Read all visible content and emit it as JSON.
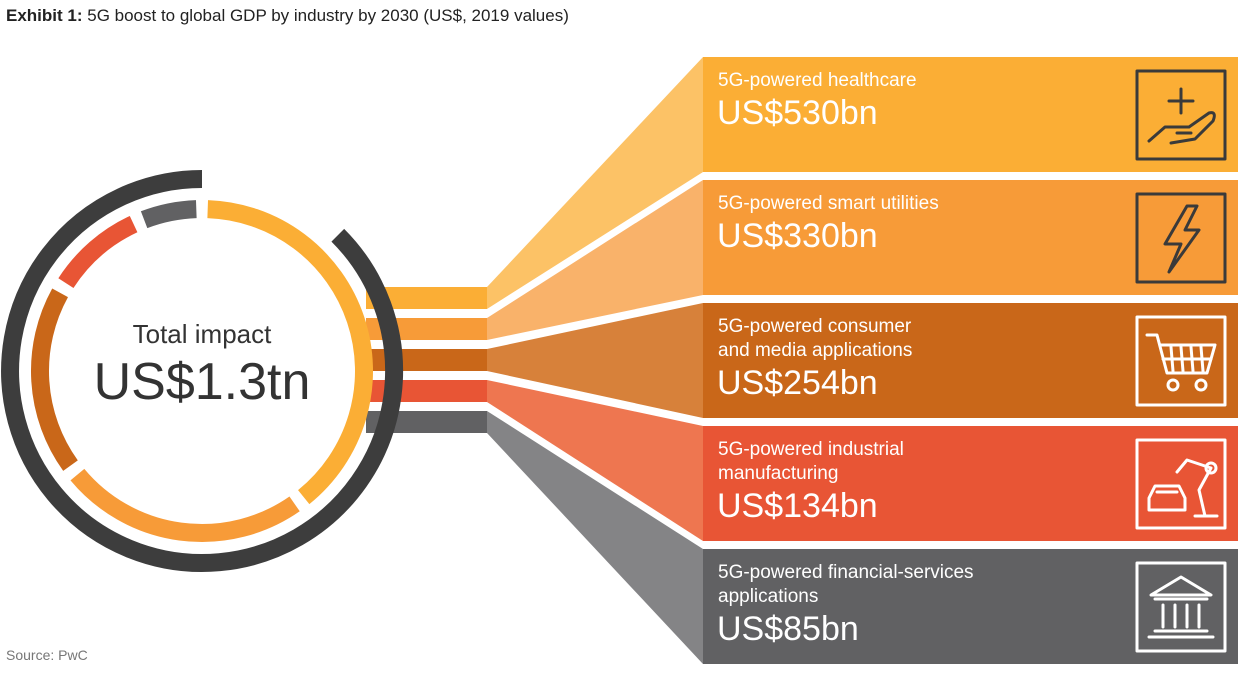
{
  "header": {
    "title_bold": "Exhibit 1:",
    "title_rest": " 5G boost to global GDP by industry by 2030 (US$, 2019 values)"
  },
  "center": {
    "label": "Total impact",
    "value": "US$1.3tn"
  },
  "source": "Source: PwC",
  "colors": {
    "ring_outer": "#3d3d3d",
    "band_gap": "#ffffff"
  },
  "chart_data": {
    "type": "bar",
    "total": 1.3,
    "total_unit": "US$ trillion",
    "categories": [
      "5G-powered healthcare",
      "5G-powered smart utilities",
      "5G-powered consumer and media applications",
      "5G-powered industrial manufacturing",
      "5G-powered financial-services applications"
    ],
    "values": [
      530,
      330,
      254,
      134,
      85
    ],
    "unit": "US$bn",
    "segments": [
      {
        "label_lines": [
          "5G-powered healthcare"
        ],
        "value_label": "US$530bn",
        "value": 530,
        "color": "#fbae35",
        "fan_color": "#fcc266",
        "icon": "hand-plus-icon",
        "icon_style": "dark"
      },
      {
        "label_lines": [
          "5G-powered smart utilities"
        ],
        "value_label": "US$330bn",
        "value": 330,
        "color": "#f79b38",
        "fan_color": "#f9b26a",
        "icon": "lightning-icon",
        "icon_style": "dark"
      },
      {
        "label_lines": [
          "5G-powered consumer",
          "and media applications"
        ],
        "value_label": "US$254bn",
        "value": 254,
        "color": "#c96719",
        "fan_color": "#d7813a",
        "icon": "shopping-cart-icon",
        "icon_style": "light"
      },
      {
        "label_lines": [
          "5G-powered industrial",
          "manufacturing"
        ],
        "value_label": "US$134bn",
        "value": 134,
        "color": "#e85535",
        "fan_color": "#ee7650",
        "icon": "robot-arm-car-icon",
        "icon_style": "light"
      },
      {
        "label_lines": [
          "5G-powered financial-services",
          "applications"
        ],
        "value_label": "US$85bn",
        "value": 85,
        "color": "#616163",
        "fan_color": "#848486",
        "icon": "bank-building-icon",
        "icon_style": "light"
      }
    ]
  }
}
